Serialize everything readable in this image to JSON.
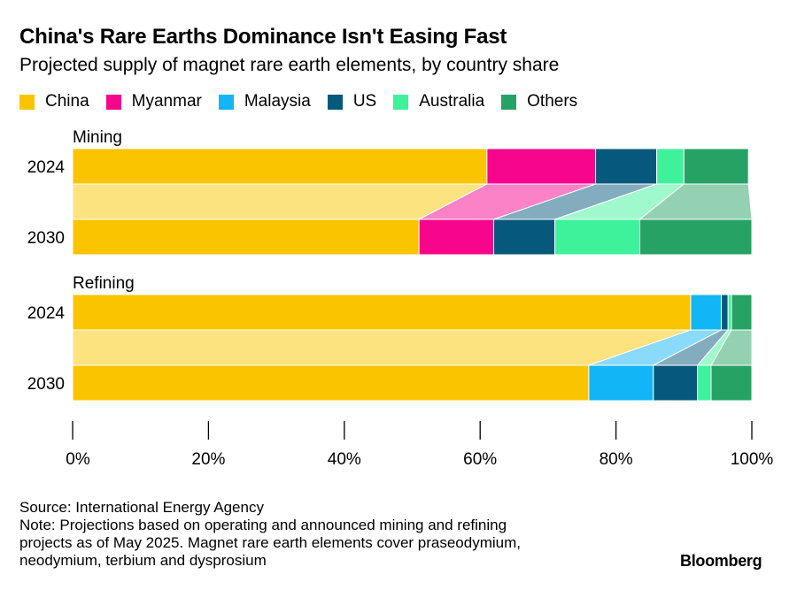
{
  "title": "China's Rare Earths Dominance Isn't Easing Fast",
  "subtitle": "Projected supply of magnet rare earth elements, by country share",
  "legend": [
    {
      "label": "China",
      "color": "#fbc400"
    },
    {
      "label": "Myanmar",
      "color": "#f7058d"
    },
    {
      "label": "Malaysia",
      "color": "#12b5f6"
    },
    {
      "label": "US",
      "color": "#07587d"
    },
    {
      "label": "Australia",
      "color": "#3ef29b"
    },
    {
      "label": "Others",
      "color": "#26a264"
    }
  ],
  "chart_data": {
    "type": "bar",
    "orientation": "horizontal",
    "stacked": true,
    "title": "China's Rare Earths Dominance Isn't Easing Fast",
    "subtitle": "Projected supply of magnet rare earth elements, by country share",
    "xlabel": "",
    "ylabel": "",
    "xlim": [
      0,
      100
    ],
    "x_ticks": [
      "0%",
      "20%",
      "40%",
      "60%",
      "80%",
      "100%"
    ],
    "series_names": [
      "China",
      "Myanmar",
      "Malaysia",
      "US",
      "Australia",
      "Others"
    ],
    "panels": [
      {
        "name": "Mining",
        "categories": [
          "2024",
          "2030"
        ],
        "values": {
          "2024": [
            61,
            16,
            0,
            9,
            4,
            9.5
          ],
          "2030": [
            51,
            11,
            0,
            9,
            12.5,
            16.5
          ]
        }
      },
      {
        "name": "Refining",
        "categories": [
          "2024",
          "2030"
        ],
        "values": {
          "2024": [
            91,
            0,
            4.5,
            1,
            0.5,
            3
          ],
          "2030": [
            76,
            0,
            9.5,
            6.5,
            2,
            6
          ]
        }
      }
    ]
  },
  "footer": {
    "source": "Source: International Energy Agency",
    "note_lines": [
      "Note: Projections based on operating and announced mining and refining",
      "projects as of May 2025. Magnet rare earth elements cover praseodymium,",
      "neodymium, terbium and dysprosium"
    ]
  },
  "brand": "Bloomberg"
}
